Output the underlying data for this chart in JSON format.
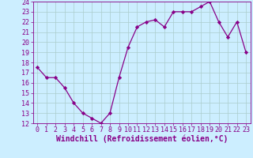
{
  "x": [
    0,
    1,
    2,
    3,
    4,
    5,
    6,
    7,
    8,
    9,
    10,
    11,
    12,
    13,
    14,
    15,
    16,
    17,
    18,
    19,
    20,
    21,
    22,
    23
  ],
  "y": [
    17.5,
    16.5,
    16.5,
    15.5,
    14.0,
    13.0,
    12.5,
    12.0,
    13.0,
    16.5,
    19.5,
    21.5,
    22.0,
    22.2,
    21.5,
    23.0,
    23.0,
    23.0,
    23.5,
    24.0,
    22.0,
    20.5,
    22.0,
    19.0
  ],
  "line_color": "#880088",
  "marker": "D",
  "marker_size": 2.2,
  "bg_color": "#cceeff",
  "grid_color": "#aacccc",
  "xlabel": "Windchill (Refroidissement éolien,°C)",
  "ylim": [
    12,
    24
  ],
  "xlim_min": -0.5,
  "xlim_max": 23.5,
  "yticks": [
    12,
    13,
    14,
    15,
    16,
    17,
    18,
    19,
    20,
    21,
    22,
    23,
    24
  ],
  "xticks": [
    0,
    1,
    2,
    3,
    4,
    5,
    6,
    7,
    8,
    9,
    10,
    11,
    12,
    13,
    14,
    15,
    16,
    17,
    18,
    19,
    20,
    21,
    22,
    23
  ],
  "line_width": 0.9,
  "tick_fontsize": 6.0,
  "xlabel_fontsize": 7.0,
  "xlabel_color": "#880088",
  "tick_color": "#880088",
  "spine_color": "#880088"
}
